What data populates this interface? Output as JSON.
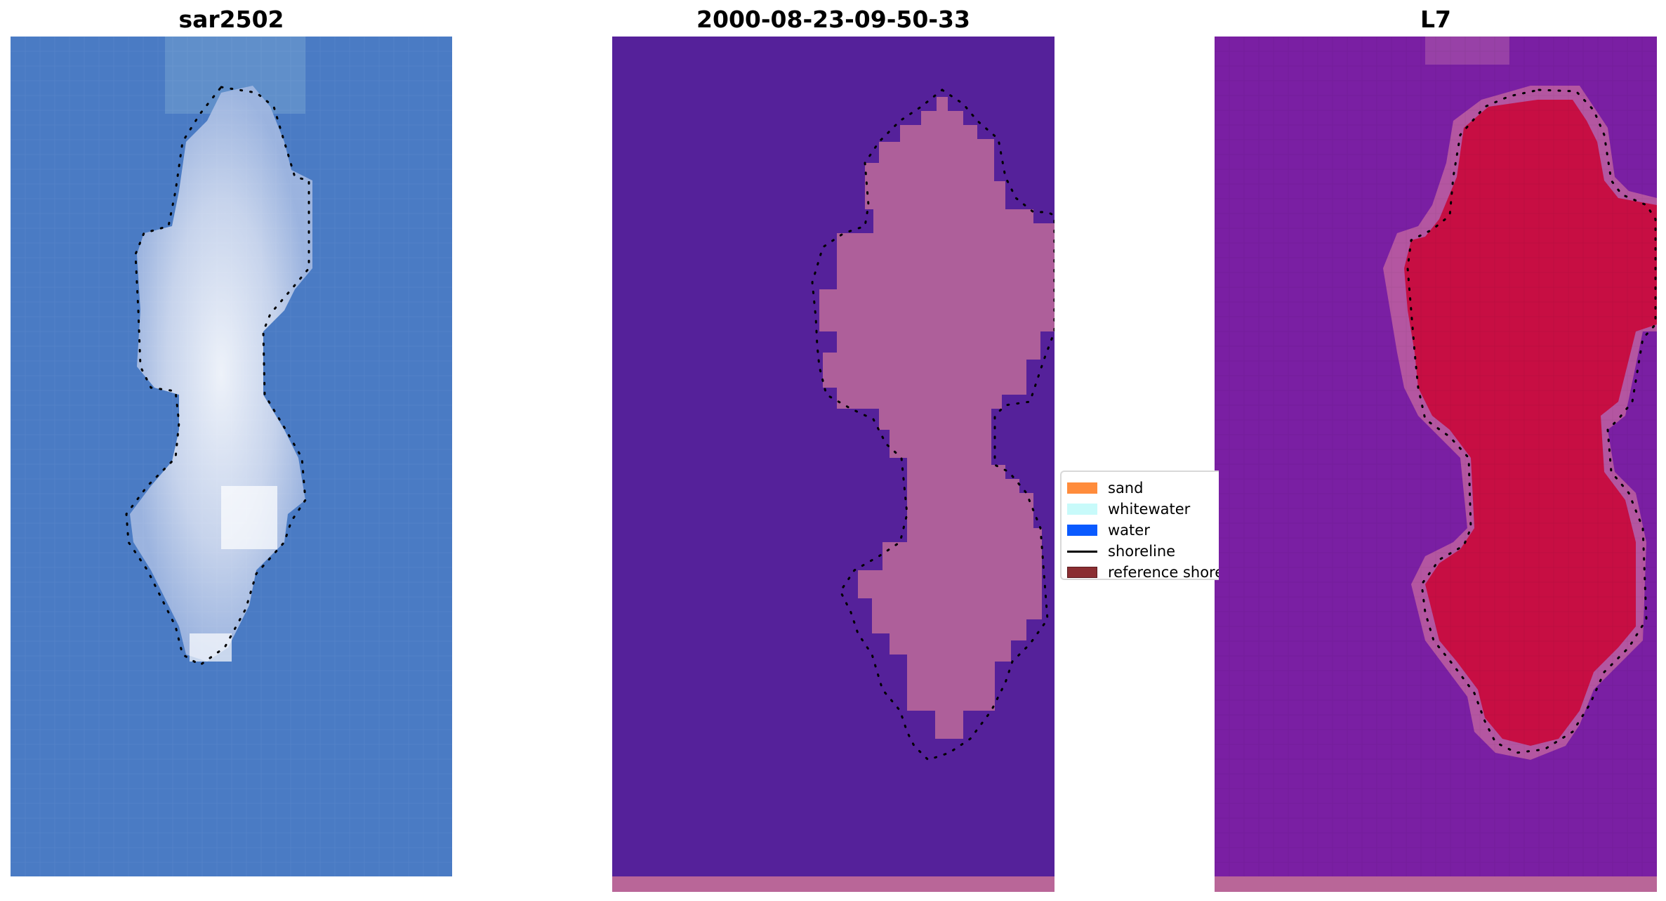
{
  "panels": [
    {
      "id": "rgb",
      "title": "sar2502"
    },
    {
      "id": "classified",
      "title": "2000-08-23-09-50-33"
    },
    {
      "id": "mndwi",
      "title": "L7"
    }
  ],
  "legend": {
    "items": [
      {
        "label": "sand",
        "color": "#ff8c3c"
      },
      {
        "label": "whitewater",
        "color": "#c8fafa"
      },
      {
        "label": "water",
        "color": "#0a5aff"
      },
      {
        "label": "shoreline",
        "color": "#000000"
      },
      {
        "label": "reference shoreline",
        "color": "#8b2e32"
      }
    ]
  },
  "colors": {
    "ocean_blue": "#4a7bc4",
    "island_white": "#dfe6f2",
    "classified_background": "#55219a",
    "classified_land": "#b8669a",
    "bottom_band": "#b96698",
    "mndwi_background": "#7a1fa3",
    "mndwi_land": "#c80b3e"
  }
}
